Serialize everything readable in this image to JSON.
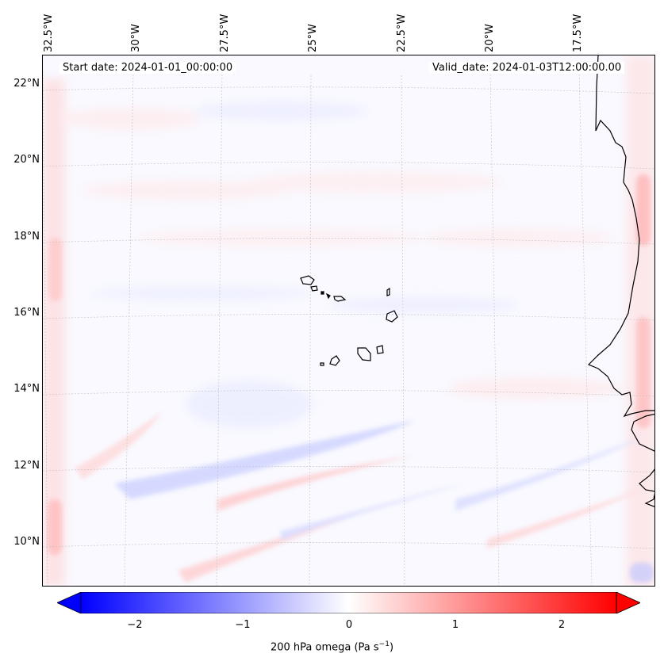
{
  "header": {
    "start_date": "Start date: 2024-01-01_00:00:00",
    "valid_date": "Valid_date: 2024-01-03T12:00:00.00"
  },
  "map": {
    "lon_ticks": [
      "32.5°W",
      "30°W",
      "27.5°W",
      "25°W",
      "22.5°W",
      "20°W",
      "17.5°W"
    ],
    "lat_ticks": [
      "22°N",
      "20°N",
      "18°N",
      "16°N",
      "14°N",
      "12°N",
      "10°N"
    ],
    "features": [
      "Cape Verde islands",
      "West African coastline"
    ],
    "gridlines": true
  },
  "colorbar": {
    "ticks": [
      "−2",
      "−1",
      "0",
      "1",
      "2"
    ],
    "label_main": "200 hPa omega (Pa s",
    "label_exp": "−1",
    "label_end": ")",
    "range": [
      -2.6,
      2.6
    ],
    "colors": {
      "low": "#0000ff",
      "mid": "#ffffff",
      "high": "#ff0000"
    },
    "extend": "both"
  }
}
